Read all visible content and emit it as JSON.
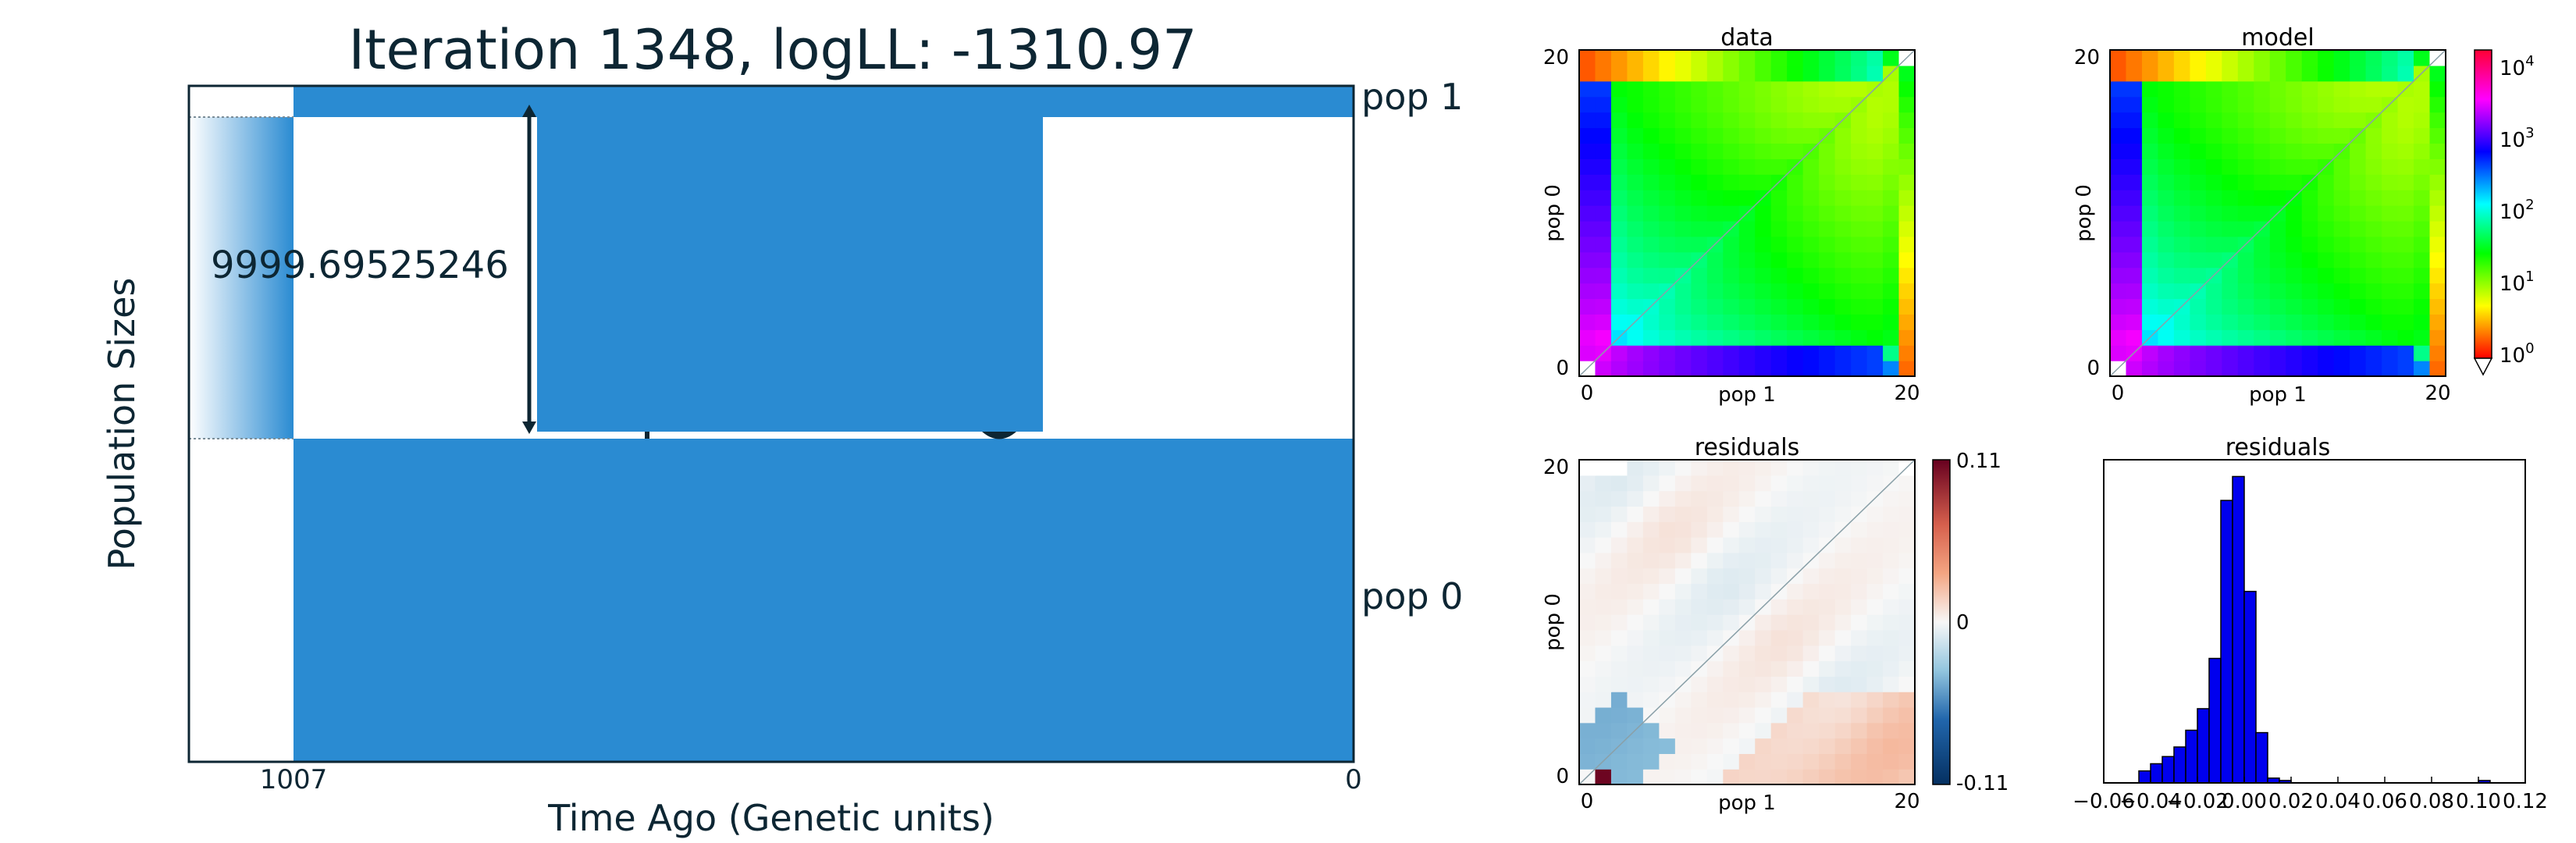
{
  "demography": {
    "title": "Iteration 1348, logLL:   -1310.97",
    "xlabel": "Time Ago (Genetic units)",
    "ylabel": "Population Sizes",
    "x_ticks": [
      "1007",
      "0"
    ],
    "pop_labels": [
      "pop 1",
      "pop 0"
    ],
    "size_label": "9999.69525246",
    "fill_color": "#2a8bd2",
    "edge_color": "#0d2633"
  },
  "chart_data": [
    {
      "type": "heatmap",
      "title": "data",
      "xlabel": "pop 1",
      "ylabel": "pop 0",
      "x_ticks": [
        "0",
        "20"
      ],
      "y_ticks": [
        "0",
        "20"
      ],
      "colormap": "hsv",
      "grid_size": 21
    },
    {
      "type": "heatmap",
      "title": "model",
      "xlabel": "pop 1",
      "ylabel": "pop 0",
      "x_ticks": [
        "0",
        "20"
      ],
      "y_ticks": [
        "0",
        "20"
      ],
      "colormap": "hsv",
      "grid_size": 21,
      "colorbar": {
        "scale": "log",
        "ticks": [
          "10",
          "10",
          "10",
          "10",
          "10"
        ],
        "exponents": [
          "4",
          "3",
          "2",
          "1",
          "0"
        ]
      }
    },
    {
      "type": "heatmap",
      "title": "residuals",
      "xlabel": "pop 1",
      "ylabel": "pop 0",
      "x_ticks": [
        "0",
        "20"
      ],
      "y_ticks": [
        "0",
        "20"
      ],
      "colormap": "RdBu_r",
      "grid_size": 21,
      "colorbar": {
        "ticks": [
          "0.11",
          "0",
          "-0.11"
        ]
      }
    },
    {
      "type": "bar",
      "title": "residuals",
      "x_ticks": [
        "−0.06",
        "−0.04",
        "−0.02",
        "0.00",
        "0.02",
        "0.04",
        "0.06",
        "0.08",
        "0.10",
        "0.12"
      ],
      "xlim": [
        -0.06,
        0.12
      ],
      "bin_width": 0.005,
      "bin_starts": [
        -0.045,
        -0.04,
        -0.035,
        -0.03,
        -0.025,
        -0.02,
        -0.015,
        -0.01,
        -0.005,
        0.0,
        0.005,
        0.01,
        0.015,
        0.02,
        0.025,
        0.1
      ],
      "counts": [
        5,
        8,
        11,
        15,
        22,
        31,
        52,
        118,
        128,
        80,
        21,
        2,
        1,
        0,
        0,
        1
      ],
      "ylim": [
        0,
        135
      ],
      "color": "#0000ee"
    }
  ]
}
